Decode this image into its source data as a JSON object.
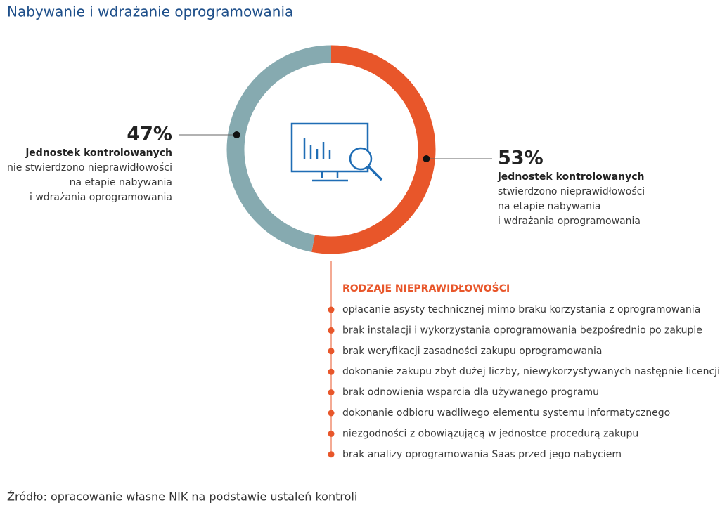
{
  "chart_data": {
    "type": "pie",
    "donut": true,
    "title": "Nabywanie i wdrażanie oprogramowania",
    "values": [
      53,
      47
    ],
    "value_labels": [
      "53%",
      "47%"
    ],
    "colors": [
      "#e8562a",
      "#86aab0"
    ],
    "labels": [
      "jednostek kontrolowanych",
      "jednostek kontrolowanych"
    ],
    "descriptions": [
      [
        "stwierdzono nieprawidłowości",
        "na etapie nabywania",
        "i wdrażania oprogramowania"
      ],
      [
        "nie stwierdzono nieprawidłowości",
        "na etapie nabywania",
        "i wdrażania oprogramowania"
      ]
    ]
  },
  "irregularities": {
    "title": "RODZAJE NIEPRAWIDŁOWOŚCI",
    "items": [
      "opłacanie asysty technicznej mimo braku korzystania z oprogramowania",
      "brak instalacji i wykorzystania oprogramowania bezpośrednio po zakupie",
      "brak weryfikacji zasadności zakupu oprogramowania",
      "dokonanie zakupu zbyt dużej liczby, niewykorzystywanych następnie licencji",
      "brak odnowienia wsparcia dla używanego programu",
      "dokonanie odbioru wadliwego elementu systemu informatycznego",
      "niezgodności z obowiązującą w jednostce procedurą zakupu",
      "brak analizy oprogramowania Saas przed jego nabyciem"
    ]
  },
  "source": "Źródło: opracowanie własne NIK na podstawie ustaleń kontroli"
}
